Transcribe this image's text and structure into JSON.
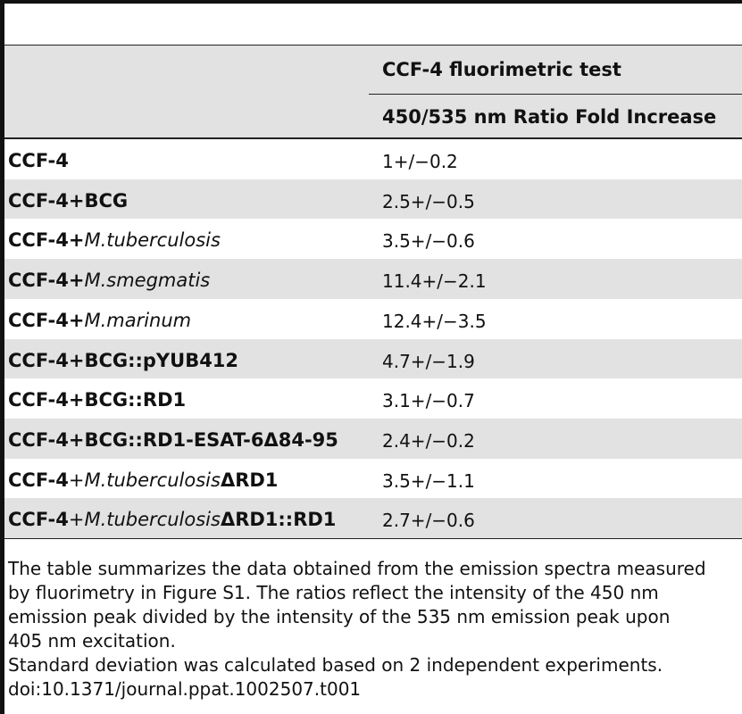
{
  "table": {
    "group_header": "CCF-4 fluorimetric test",
    "sub_header": "450/535 nm Ratio Fold Increase",
    "rows": [
      {
        "label_a": "CCF-4",
        "label_b": "",
        "label_c": "",
        "value": "1+/−0.2"
      },
      {
        "label_a": "CCF-4+BCG",
        "label_b": "",
        "label_c": "",
        "value": "2.5+/−0.5"
      },
      {
        "label_a": "CCF-4+",
        "label_b": "M.tuberculosis",
        "label_c": "",
        "value": "3.5+/−0.6"
      },
      {
        "label_a": "CCF-4+",
        "label_b": "M.smegmatis",
        "label_c": "",
        "value": "11.4+/−2.1"
      },
      {
        "label_a": "CCF-4+",
        "label_b": "M.marinum",
        "label_c": "",
        "value": "12.4+/−3.5"
      },
      {
        "label_a": "CCF-4+BCG::pYUB412",
        "label_b": "",
        "label_c": "",
        "value": "4.7+/−1.9"
      },
      {
        "label_a": "CCF-4+BCG::RD1",
        "label_b": "",
        "label_c": "",
        "value": "3.1+/−0.7"
      },
      {
        "label_a": "CCF-4+BCG::RD1-ESAT-6Δ84-95",
        "label_b": "",
        "label_c": "",
        "value": "2.4+/−0.2"
      },
      {
        "label_a": "CCF-4",
        "label_b": "+M.tuberculosis",
        "label_c": "ΔRD1",
        "value": "3.5+/−1.1"
      },
      {
        "label_a": "CCF-4",
        "label_b": "+M.tuberculosis",
        "label_c": "ΔRD1::RD1",
        "value": "2.7+/−0.6"
      }
    ]
  },
  "footnote": {
    "line1": "The table summarizes the data obtained from the emission spectra measured",
    "line2": "by fluorimetry in Figure S1. The ratios reflect the intensity of the 450 nm",
    "line3": "emission peak divided by the intensity of the 535 nm emission peak upon",
    "line4": "405 nm excitation.",
    "line5": "Standard deviation was calculated based on 2 independent experiments.",
    "doi": "doi:10.1371/journal.ppat.1002507.t001"
  }
}
